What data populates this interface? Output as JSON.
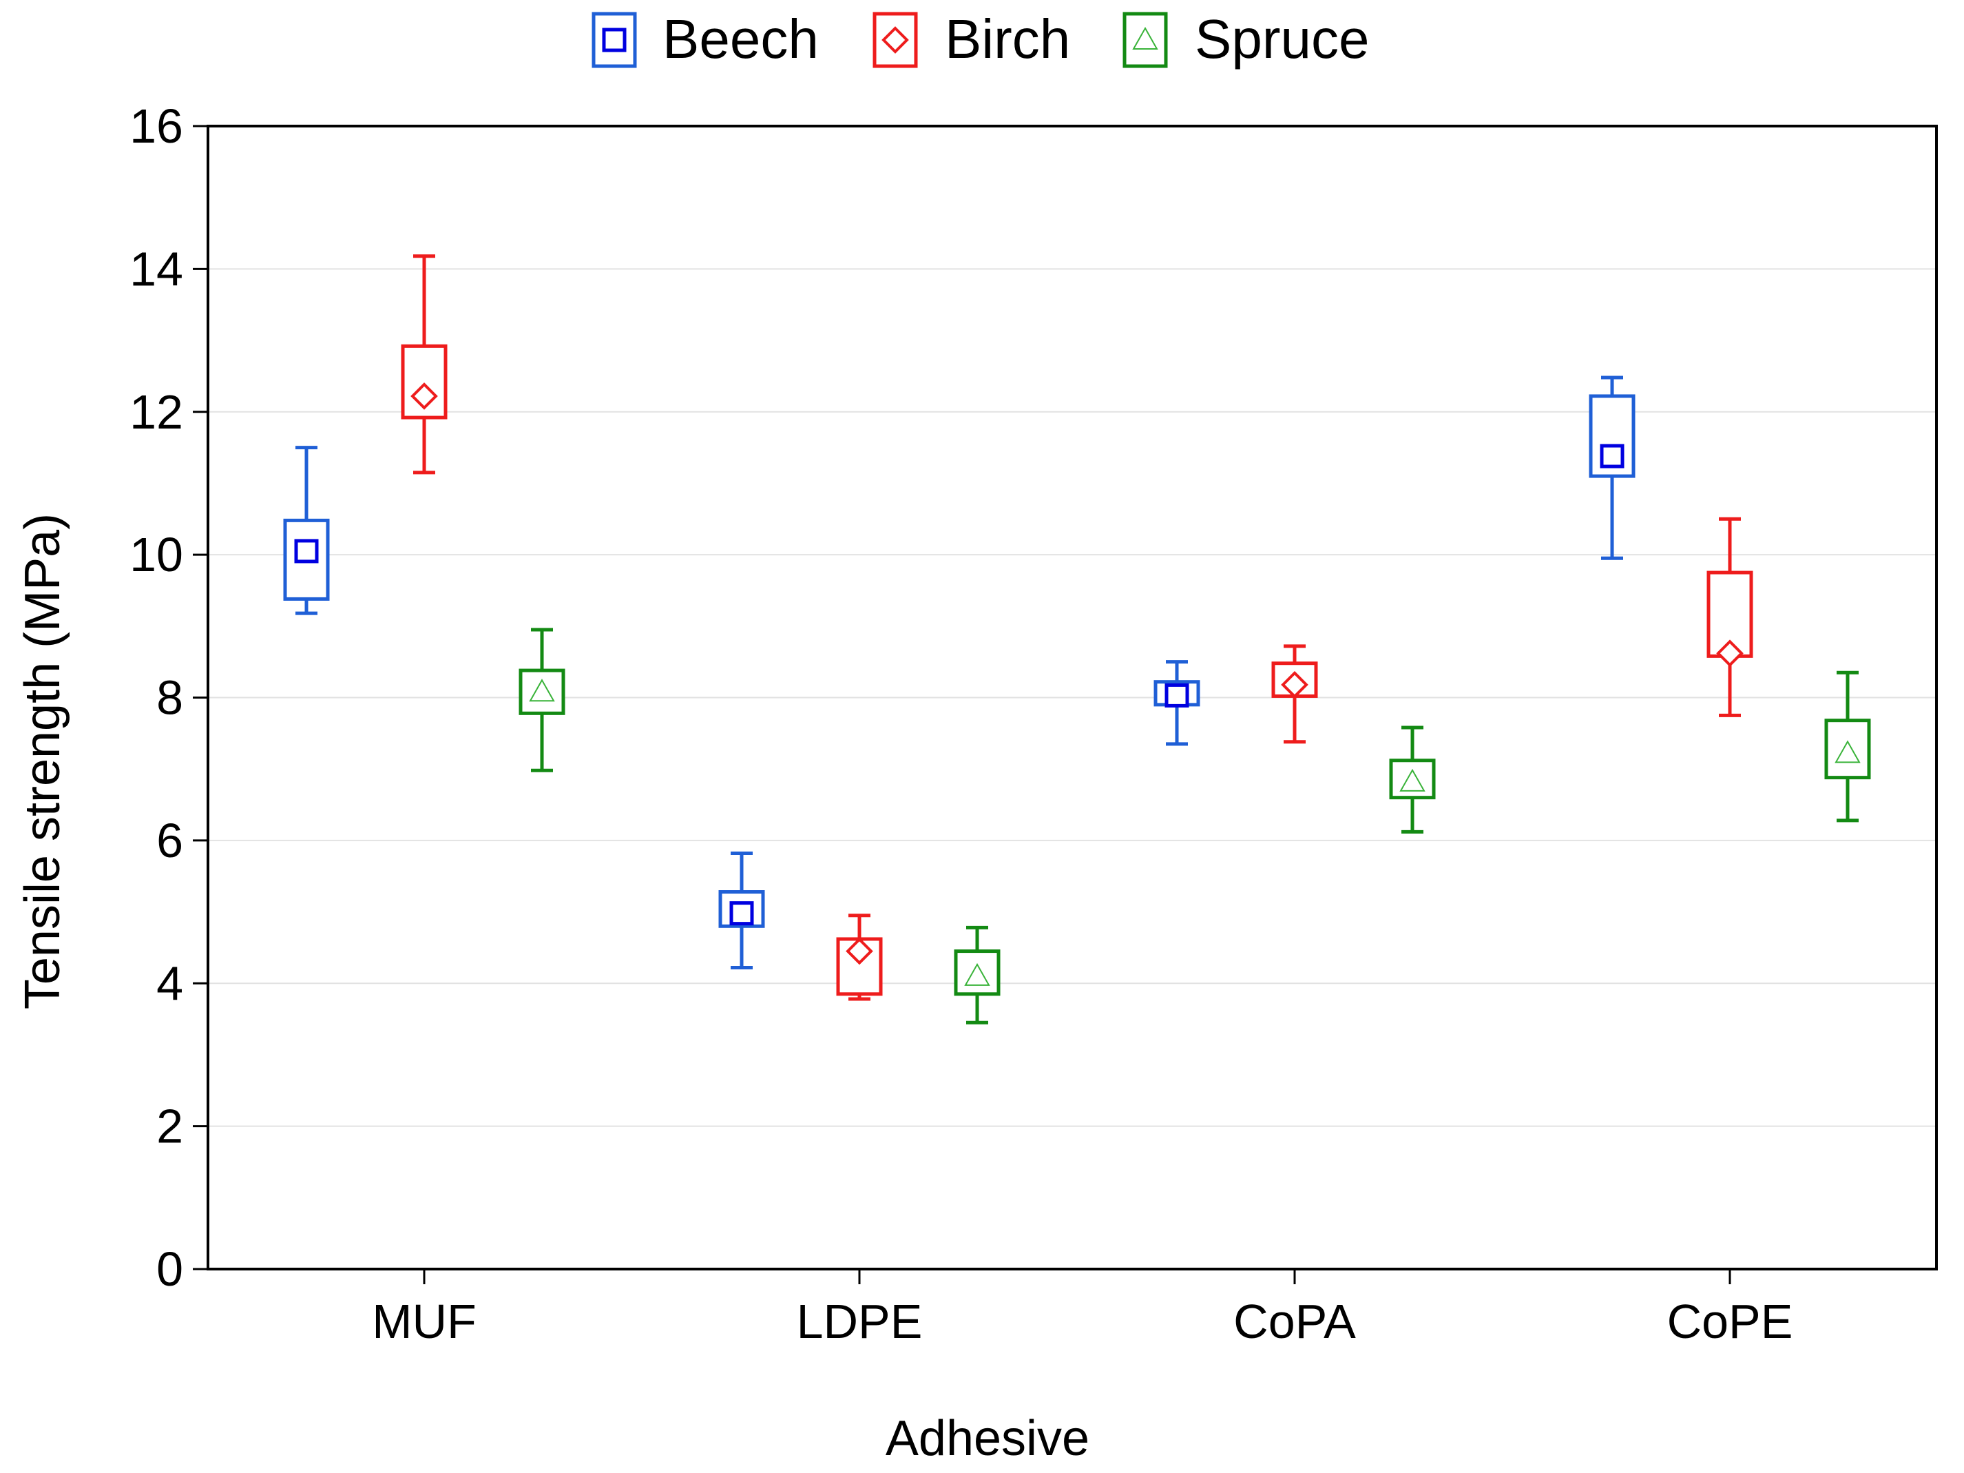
{
  "chart_data": {
    "type": "box",
    "title": "",
    "xlabel": "Adhesive",
    "ylabel": "Tensile strength (MPa)",
    "ylim": [
      0,
      16
    ],
    "yticks": [
      0,
      2,
      4,
      6,
      8,
      10,
      12,
      14,
      16
    ],
    "grid": true,
    "legend_position": "top",
    "categories": [
      "MUF",
      "LDPE",
      "CoPA",
      "CoPE"
    ],
    "series": [
      {
        "name": "Beech",
        "color": "#1f5fd6",
        "marker_color": "#0000e0",
        "marker": "square",
        "mean": [
          10.05,
          4.98,
          8.03,
          11.38
        ],
        "box_low": [
          9.38,
          4.8,
          7.9,
          11.1
        ],
        "box_high": [
          10.48,
          5.28,
          8.22,
          12.22
        ],
        "whisker_low": [
          9.18,
          4.22,
          7.35,
          9.95
        ],
        "whisker_high": [
          11.5,
          5.82,
          8.5,
          12.48
        ]
      },
      {
        "name": "Birch",
        "color": "#ee1c1c",
        "marker_color": "#ee1c1c",
        "marker": "diamond",
        "mean": [
          12.22,
          4.45,
          8.18,
          8.62
        ],
        "box_low": [
          11.92,
          3.85,
          8.02,
          8.58
        ],
        "box_high": [
          12.92,
          4.62,
          8.48,
          9.75
        ],
        "whisker_low": [
          11.15,
          3.78,
          7.38,
          7.75
        ],
        "whisker_high": [
          14.18,
          4.95,
          8.72,
          10.5
        ]
      },
      {
        "name": "Spruce",
        "color": "#138a13",
        "marker_color": "#39b339",
        "marker": "triangle",
        "mean": [
          8.08,
          4.1,
          6.82,
          7.22
        ],
        "box_low": [
          7.78,
          3.85,
          6.6,
          6.88
        ],
        "box_high": [
          8.38,
          4.45,
          7.12,
          7.68
        ],
        "whisker_low": [
          6.98,
          3.45,
          6.12,
          6.28
        ],
        "whisker_high": [
          8.95,
          4.78,
          7.58,
          8.35
        ]
      }
    ]
  }
}
